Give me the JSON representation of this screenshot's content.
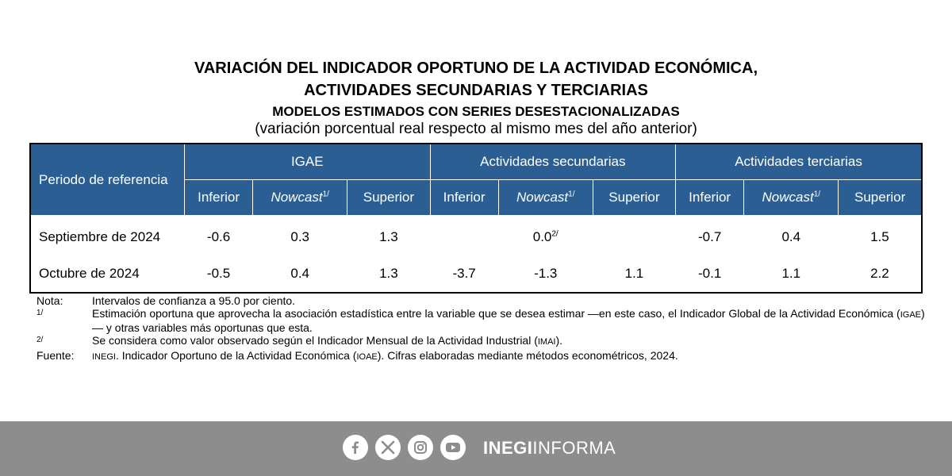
{
  "title": {
    "line1": "VARIACIÓN DEL INDICADOR OPORTUNO DE LA ACTIVIDAD ECONÓMICA,",
    "line2": "ACTIVIDADES SECUNDARIAS Y TERCIARIAS",
    "line3": "MODELOS ESTIMADOS CON SERIES DESESTACIONALIZADAS",
    "line4": "(variación porcentual real respecto al mismo mes del año anterior)"
  },
  "table": {
    "period_header": "Periodo de referencia",
    "groups": [
      "IGAE",
      "Actividades secundarias",
      "Actividades terciarias"
    ],
    "sub": {
      "inferior": "Inferior",
      "nowcast": "Nowcast",
      "nowcast_sup": "1/",
      "superior": "Superior"
    },
    "rows": [
      {
        "period": "Septiembre de 2024",
        "igae": [
          "-0.6",
          "0.3",
          "1.3"
        ],
        "sec": [
          "",
          "0.0",
          ""
        ],
        "sec_note": "2/",
        "ter": [
          "-0.7",
          "0.4",
          "1.5"
        ]
      },
      {
        "period": "Octubre de 2024",
        "igae": [
          "-0.5",
          "0.4",
          "1.3"
        ],
        "sec": [
          "-3.7",
          "-1.3",
          "1.1"
        ],
        "sec_note": "",
        "ter": [
          "-0.1",
          "1.1",
          "2.2"
        ]
      }
    ]
  },
  "notes": {
    "nota_label": "Nota:",
    "nota_text": "Intervalos de confianza a 95.0 por ciento.",
    "n1_label": "1/",
    "n1_text_a": "Estimación oportuna que aprovecha la asociación estadística entre la variable que se desea estimar —en este caso, el Indicador Global de la Actividad Económica (",
    "n1_abbr": "IGAE",
    "n1_text_b": ")— y otras variables más oportunas que esta.",
    "n2_label": "2/",
    "n2_text_a": "Se considera como valor observado según el Indicador Mensual de la Actividad Industrial (",
    "n2_abbr": "IMAI",
    "n2_text_b": ").",
    "fuente_label": "Fuente:",
    "fuente_abbr": "INEGI",
    "fuente_text_a": ". Indicador Oportuno de la Actividad Económica (",
    "fuente_abbr2": "IOAE",
    "fuente_text_b": "). Cifras elaboradas mediante métodos econométricos, 2024."
  },
  "footer": {
    "icons": [
      "facebook-icon",
      "x-icon",
      "instagram-icon",
      "youtube-icon"
    ],
    "brand_bold": "INEGI",
    "brand_light": "INFORMA",
    "bg_color": "#8d8d8d"
  }
}
